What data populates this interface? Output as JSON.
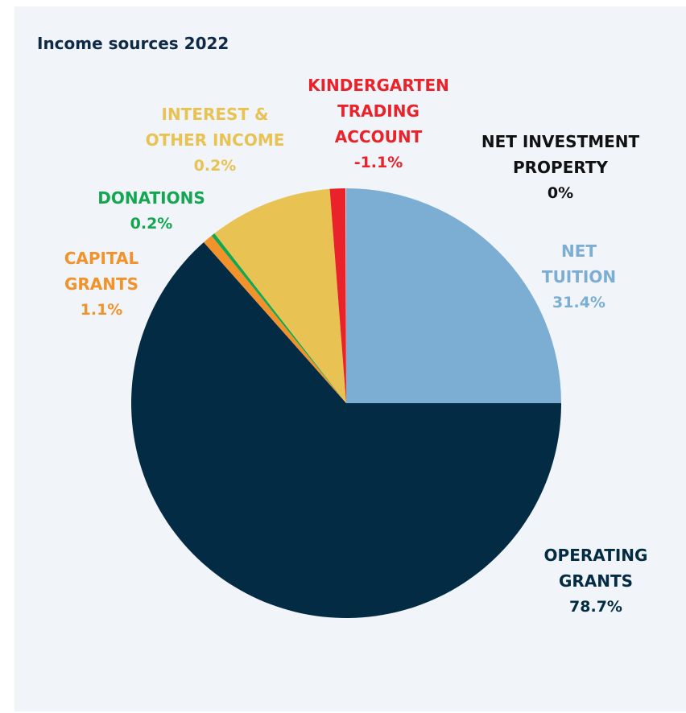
{
  "chart_data": {
    "type": "pie",
    "title": "Income sources 2022",
    "slices": [
      {
        "name": "NET TUITION",
        "label_lines": [
          "NET",
          "TUITION"
        ],
        "value_label": "31.4%",
        "value": 31.4,
        "color": "#7caed3"
      },
      {
        "name": "OPERATING GRANTS",
        "label_lines": [
          "OPERATING",
          "GRANTS"
        ],
        "value_label": "78.7%",
        "value": 78.7,
        "color": "#032c44"
      },
      {
        "name": "CAPITAL GRANTS",
        "label_lines": [
          "CAPITAL",
          "GRANTS"
        ],
        "value_label": "1.1%",
        "value": 1.1,
        "color": "#f2922a"
      },
      {
        "name": "DONATIONS",
        "label_lines": [
          "DONATIONS"
        ],
        "value_label": "0.2%",
        "value": 0.2,
        "color": "#14a651"
      },
      {
        "name": "INTEREST & OTHER INCOME",
        "label_lines": [
          "INTEREST &",
          "OTHER INCOME"
        ],
        "value_label": "0.2%",
        "value": 0.2,
        "color": "#e8c353"
      },
      {
        "name": "KINDERGARTEN TRADING ACCOUNT",
        "label_lines": [
          "KINDERGARTEN",
          "TRADING",
          "ACCOUNT"
        ],
        "value_label": "-1.1%",
        "value": -1.1,
        "color": "#ea2229"
      },
      {
        "name": "NET INVESTMENT PROPERTY",
        "label_lines": [
          "NET INVESTMENT",
          "PROPERTY"
        ],
        "value_label": "0%",
        "value": 0,
        "color": "#111111"
      }
    ]
  }
}
